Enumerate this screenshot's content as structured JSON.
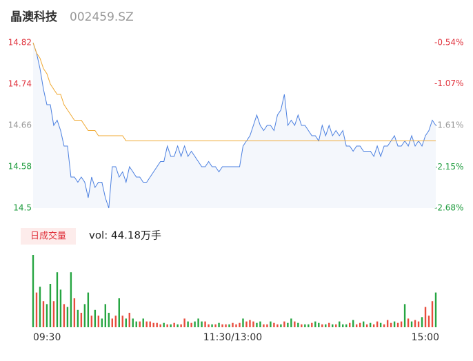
{
  "chart_data": {
    "type": "line",
    "title": "晶澳科技",
    "subtitle": "002459.SZ",
    "categories": [
      "09:30",
      null,
      null,
      null,
      null,
      null,
      null,
      null,
      null,
      null,
      null,
      null,
      null,
      null,
      null,
      null,
      null,
      null,
      null,
      null,
      null,
      null,
      null,
      null,
      null,
      null,
      null,
      null,
      null,
      null,
      null,
      null,
      null,
      null,
      null,
      null,
      null,
      null,
      null,
      null,
      null,
      null,
      null,
      null,
      null,
      null,
      null,
      null,
      null,
      null,
      null,
      null,
      null,
      null,
      null,
      null,
      null,
      null,
      "11:30/13:00",
      null,
      null,
      null,
      null,
      null,
      null,
      null,
      null,
      null,
      null,
      null,
      null,
      null,
      null,
      null,
      null,
      null,
      null,
      null,
      null,
      null,
      null,
      null,
      null,
      null,
      null,
      null,
      null,
      null,
      null,
      null,
      null,
      null,
      null,
      null,
      null,
      null,
      null,
      null,
      null,
      null,
      null,
      null,
      null,
      null,
      null,
      null,
      null,
      null,
      null,
      null,
      null,
      null,
      null,
      null,
      null,
      null,
      null,
      "15:00"
    ],
    "series": [
      {
        "name": "price",
        "color": "#4a7fe0",
        "fill": "#f4f7fc",
        "values": [
          14.82,
          14.8,
          14.77,
          14.73,
          14.7,
          14.7,
          14.66,
          14.67,
          14.65,
          14.62,
          14.62,
          14.56,
          14.56,
          14.55,
          14.56,
          14.55,
          14.52,
          14.56,
          14.54,
          14.55,
          14.55,
          14.52,
          14.5,
          14.58,
          14.58,
          14.56,
          14.57,
          14.55,
          14.58,
          14.57,
          14.56,
          14.56,
          14.55,
          14.55,
          14.56,
          14.57,
          14.58,
          14.59,
          14.59,
          14.62,
          14.6,
          14.6,
          14.62,
          14.6,
          14.62,
          14.6,
          14.61,
          14.6,
          14.59,
          14.58,
          14.58,
          14.59,
          14.58,
          14.58,
          14.57,
          14.58,
          14.58,
          14.58,
          14.58,
          14.58,
          14.58,
          14.62,
          14.63,
          14.64,
          14.66,
          14.68,
          14.66,
          14.65,
          14.66,
          14.66,
          14.65,
          14.68,
          14.69,
          14.72,
          14.66,
          14.67,
          14.66,
          14.68,
          14.66,
          14.66,
          14.65,
          14.64,
          14.64,
          14.63,
          14.66,
          14.64,
          14.66,
          14.64,
          14.65,
          14.64,
          14.65,
          14.62,
          14.62,
          14.61,
          14.62,
          14.62,
          14.61,
          14.61,
          14.61,
          14.6,
          14.62,
          14.6,
          14.62,
          14.62,
          14.63,
          14.64,
          14.62,
          14.62,
          14.63,
          14.62,
          14.64,
          14.62,
          14.63,
          14.62,
          14.64,
          14.65,
          14.67,
          14.66
        ]
      },
      {
        "name": "average",
        "color": "#f0a830",
        "values": [
          14.82,
          14.8,
          14.79,
          14.77,
          14.76,
          14.74,
          14.73,
          14.72,
          14.72,
          14.7,
          14.69,
          14.68,
          14.67,
          14.67,
          14.67,
          14.66,
          14.65,
          14.65,
          14.65,
          14.64,
          14.64,
          14.64,
          14.64,
          14.64,
          14.64,
          14.64,
          14.64,
          14.63,
          14.63,
          14.63,
          14.63,
          14.63,
          14.63,
          14.63,
          14.63,
          14.63,
          14.63,
          14.63,
          14.63,
          14.63,
          14.63,
          14.63,
          14.63,
          14.63,
          14.63,
          14.63,
          14.63,
          14.63,
          14.63,
          14.63,
          14.63,
          14.63,
          14.63,
          14.63,
          14.63,
          14.63,
          14.63,
          14.63,
          14.63,
          14.63,
          14.63,
          14.63,
          14.63,
          14.63,
          14.63,
          14.63,
          14.63,
          14.63,
          14.63,
          14.63,
          14.63,
          14.63,
          14.63,
          14.63,
          14.63,
          14.63,
          14.63,
          14.63,
          14.63,
          14.63,
          14.63,
          14.63,
          14.63,
          14.63,
          14.63,
          14.63,
          14.63,
          14.63,
          14.63,
          14.63,
          14.63,
          14.63,
          14.63,
          14.63,
          14.63,
          14.63,
          14.63,
          14.63,
          14.63,
          14.63,
          14.63,
          14.63,
          14.63,
          14.63,
          14.63,
          14.63,
          14.63,
          14.63,
          14.63,
          14.63,
          14.63,
          14.63,
          14.63,
          14.63,
          14.63,
          14.63,
          14.63,
          14.63
        ]
      }
    ],
    "ylim": [
      14.5,
      14.82
    ],
    "yticks": [
      14.5,
      14.58,
      14.66,
      14.74,
      14.82
    ],
    "ytick_colors": [
      "#1a9a3a",
      "#1a9a3a",
      "#999999",
      "#e0323c",
      "#e0323c"
    ],
    "y2lim": [
      -2.68,
      -0.54
    ],
    "y2ticks": [
      {
        "value": -2.68,
        "label": "-2.68%"
      },
      {
        "value": -2.15,
        "label": "-2.15%"
      },
      {
        "value": -1.61,
        "label": "-1.61%"
      },
      {
        "value": -1.07,
        "label": "-1.07%"
      },
      {
        "value": -0.54,
        "label": "-0.54%"
      }
    ],
    "volume": {
      "label": "日成交量",
      "total_label": "vol: 44.18万手",
      "ylim": [
        0,
        2.5
      ],
      "values": [
        2.5,
        1.2,
        1.4,
        0.9,
        0.8,
        1.5,
        0.9,
        1.9,
        1.3,
        0.8,
        0.7,
        1.9,
        1.0,
        0.6,
        0.5,
        0.8,
        1.2,
        0.4,
        0.6,
        0.4,
        0.3,
        0.8,
        0.5,
        0.3,
        0.4,
        1.0,
        0.4,
        0.3,
        0.5,
        0.3,
        0.2,
        0.2,
        0.3,
        0.2,
        0.2,
        0.15,
        0.15,
        0.1,
        0.15,
        0.1,
        0.1,
        0.15,
        0.1,
        0.1,
        0.3,
        0.2,
        0.15,
        0.2,
        0.3,
        0.2,
        0.2,
        0.1,
        0.1,
        0.1,
        0.15,
        0.1,
        0.1,
        0.1,
        0.15,
        0.1,
        0.15,
        0.3,
        0.2,
        0.25,
        0.2,
        0.15,
        0.2,
        0.1,
        0.1,
        0.2,
        0.15,
        0.1,
        0.1,
        0.2,
        0.15,
        0.3,
        0.2,
        0.15,
        0.1,
        0.1,
        0.1,
        0.15,
        0.2,
        0.15,
        0.1,
        0.1,
        0.15,
        0.1,
        0.1,
        0.2,
        0.1,
        0.1,
        0.15,
        0.25,
        0.1,
        0.15,
        0.2,
        0.1,
        0.15,
        0.1,
        0.2,
        0.15,
        0.1,
        0.25,
        0.15,
        0.2,
        0.15,
        0.2,
        0.8,
        0.3,
        0.2,
        0.25,
        0.2,
        0.35,
        0.7,
        0.4,
        0.9,
        1.2
      ],
      "colors": [
        "#26a541",
        "#e84c3d",
        "#26a541",
        "#e84c3d",
        "#26a541",
        "#26a541",
        "#e84c3d",
        "#26a541",
        "#26a541",
        "#e84c3d",
        "#26a541",
        "#26a541",
        "#e84c3d",
        "#26a541",
        "#e84c3d",
        "#26a541",
        "#26a541",
        "#e84c3d",
        "#26a541",
        "#e84c3d",
        "#26a541",
        "#26a541",
        "#26a541",
        "#e84c3d",
        "#e84c3d",
        "#26a541",
        "#e84c3d",
        "#26a541",
        "#e84c3d",
        "#26a541",
        "#26a541",
        "#e84c3d",
        "#26a541",
        "#e84c3d",
        "#e84c3d",
        "#e84c3d",
        "#e84c3d",
        "#e84c3d",
        "#26a541",
        "#e84c3d",
        "#26a541",
        "#e84c3d",
        "#26a541",
        "#e84c3d",
        "#e84c3d",
        "#26a541",
        "#e84c3d",
        "#26a541",
        "#26a541",
        "#26a541",
        "#e84c3d",
        "#e84c3d",
        "#26a541",
        "#e84c3d",
        "#26a541",
        "#e84c3d",
        "#e84c3d",
        "#26a541",
        "#e84c3d",
        "#e84c3d",
        "#e84c3d",
        "#26a541",
        "#e84c3d",
        "#e84c3d",
        "#e84c3d",
        "#26a541",
        "#26a541",
        "#e84c3d",
        "#e84c3d",
        "#26a541",
        "#e84c3d",
        "#e84c3d",
        "#26a541",
        "#e84c3d",
        "#26a541",
        "#26a541",
        "#e84c3d",
        "#26a541",
        "#e84c3d",
        "#26a541",
        "#26a541",
        "#e84c3d",
        "#26a541",
        "#26a541",
        "#e84c3d",
        "#26a541",
        "#e84c3d",
        "#26a541",
        "#e84c3d",
        "#26a541",
        "#26a541",
        "#26a541",
        "#e84c3d",
        "#26a541",
        "#e84c3d",
        "#e84c3d",
        "#26a541",
        "#e84c3d",
        "#26a541",
        "#e84c3d",
        "#e84c3d",
        "#26a541",
        "#e84c3d",
        "#e84c3d",
        "#e84c3d",
        "#26a541",
        "#e84c3d",
        "#e84c3d",
        "#26a541",
        "#e84c3d",
        "#26a541",
        "#e84c3d",
        "#e84c3d",
        "#26a541",
        "#e84c3d",
        "#e84c3d",
        "#e84c3d",
        "#26a541"
      ]
    }
  }
}
